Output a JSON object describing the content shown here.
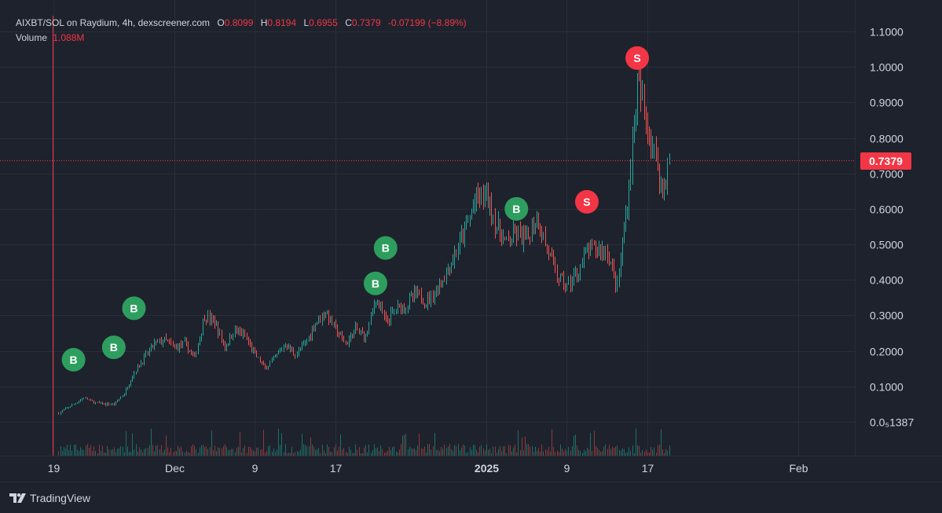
{
  "legend": {
    "symbol": "AIXBT/SOL on Raydium, 4h, dexscreener.com",
    "open_label": "O",
    "open": "0.8099",
    "high_label": "H",
    "high": "0.8194",
    "low_label": "L",
    "low": "0.6955",
    "close_label": "C",
    "close": "0.7379",
    "change": "-0.07199 (−8.89%)",
    "volume_label": "Volume",
    "volume": "1.088M"
  },
  "current_price_tag": "0.7379",
  "branding": {
    "name": "TradingView",
    "logo_icon": "tradingview-logo-icon"
  },
  "colors": {
    "background": "#1e222d",
    "up": "#26a69a",
    "down": "#ef5350",
    "buy_marker": "#2e9e5f",
    "sell_marker": "#f23645",
    "price_line": "#f23645",
    "text": "#d1d4dc"
  },
  "chart_data": {
    "type": "candlestick",
    "interval": "4h",
    "y_axis": {
      "ticks": [
        "1.1000",
        "1.0000",
        "0.9000",
        "0.8000",
        "0.7000",
        "0.6000",
        "0.5000",
        "0.4000",
        "0.3000",
        "0.2000",
        "0.1000",
        "0.0₅1387"
      ],
      "tick_values": [
        1.1,
        1.0,
        0.9,
        0.8,
        0.7,
        0.6,
        0.5,
        0.4,
        0.3,
        0.2,
        0.1,
        0.0
      ],
      "range": [
        0,
        1.13
      ]
    },
    "x_axis": {
      "ticks": [
        "19",
        "Dec",
        "9",
        "17",
        "2025",
        "9",
        "17",
        "Feb"
      ],
      "tick_dates": [
        "2024-11-19",
        "2024-12-01",
        "2024-12-09",
        "2024-12-17",
        "2025-01-01",
        "2025-01-09",
        "2025-01-17",
        "2025-02-01"
      ],
      "bold_ticks": [
        "2025"
      ]
    },
    "current_price": 0.7379,
    "grid": true,
    "price_path": [
      [
        "2024-11-19T12:00",
        0.025
      ],
      [
        "2024-11-21",
        0.05
      ],
      [
        "2024-11-22",
        0.068
      ],
      [
        "2024-11-23",
        0.055
      ],
      [
        "2024-11-24",
        0.05
      ],
      [
        "2024-11-25",
        0.05
      ],
      [
        "2024-11-26",
        0.08
      ],
      [
        "2024-11-27",
        0.14
      ],
      [
        "2024-11-28",
        0.18
      ],
      [
        "2024-11-29",
        0.22
      ],
      [
        "2024-11-30",
        0.23
      ],
      [
        "2024-12-01",
        0.21
      ],
      [
        "2024-12-02",
        0.22
      ],
      [
        "2024-12-03",
        0.18
      ],
      [
        "2024-12-04",
        0.3
      ],
      [
        "2024-12-05",
        0.28
      ],
      [
        "2024-12-06",
        0.21
      ],
      [
        "2024-12-07",
        0.26
      ],
      [
        "2024-12-08",
        0.24
      ],
      [
        "2024-12-09",
        0.19
      ],
      [
        "2024-12-10",
        0.15
      ],
      [
        "2024-12-11",
        0.18
      ],
      [
        "2024-12-12",
        0.22
      ],
      [
        "2024-12-13",
        0.19
      ],
      [
        "2024-12-14",
        0.22
      ],
      [
        "2024-12-15",
        0.28
      ],
      [
        "2024-12-16",
        0.31
      ],
      [
        "2024-12-17",
        0.26
      ],
      [
        "2024-12-18",
        0.22
      ],
      [
        "2024-12-19",
        0.26
      ],
      [
        "2024-12-20",
        0.24
      ],
      [
        "2024-12-21",
        0.35
      ],
      [
        "2024-12-22",
        0.28
      ],
      [
        "2024-12-23",
        0.32
      ],
      [
        "2024-12-24",
        0.33
      ],
      [
        "2024-12-25",
        0.36
      ],
      [
        "2024-12-26",
        0.34
      ],
      [
        "2024-12-27",
        0.37
      ],
      [
        "2024-12-28",
        0.42
      ],
      [
        "2024-12-29",
        0.48
      ],
      [
        "2024-12-30",
        0.55
      ],
      [
        "2024-12-31",
        0.63
      ],
      [
        "2025-01-01",
        0.64
      ],
      [
        "2025-01-02",
        0.55
      ],
      [
        "2025-01-03",
        0.5
      ],
      [
        "2025-01-04",
        0.53
      ],
      [
        "2025-01-05",
        0.51
      ],
      [
        "2025-01-06",
        0.58
      ],
      [
        "2025-01-07",
        0.49
      ],
      [
        "2025-01-08",
        0.41
      ],
      [
        "2025-01-09",
        0.38
      ],
      [
        "2025-01-10",
        0.42
      ],
      [
        "2025-01-11",
        0.48
      ],
      [
        "2025-01-12",
        0.49
      ],
      [
        "2025-01-13",
        0.48
      ],
      [
        "2025-01-14",
        0.38
      ],
      [
        "2025-01-15",
        0.62
      ],
      [
        "2025-01-16",
        0.95
      ],
      [
        "2025-01-17",
        0.84
      ],
      [
        "2025-01-18",
        0.72
      ],
      [
        "2025-01-18T12:00",
        0.65
      ],
      [
        "2025-01-19T04:00",
        0.74
      ]
    ],
    "signals": [
      {
        "type": "B",
        "date": "2024-11-21",
        "price": 0.175
      },
      {
        "type": "B",
        "date": "2024-11-25",
        "price": 0.21
      },
      {
        "type": "B",
        "date": "2024-11-27",
        "price": 0.32
      },
      {
        "type": "B",
        "date": "2024-12-21",
        "price": 0.39
      },
      {
        "type": "B",
        "date": "2024-12-22",
        "price": 0.49
      },
      {
        "type": "B",
        "date": "2025-01-04",
        "price": 0.6
      },
      {
        "type": "S",
        "date": "2025-01-11",
        "price": 0.62
      },
      {
        "type": "S",
        "date": "2025-01-16",
        "price": 1.025
      }
    ]
  }
}
